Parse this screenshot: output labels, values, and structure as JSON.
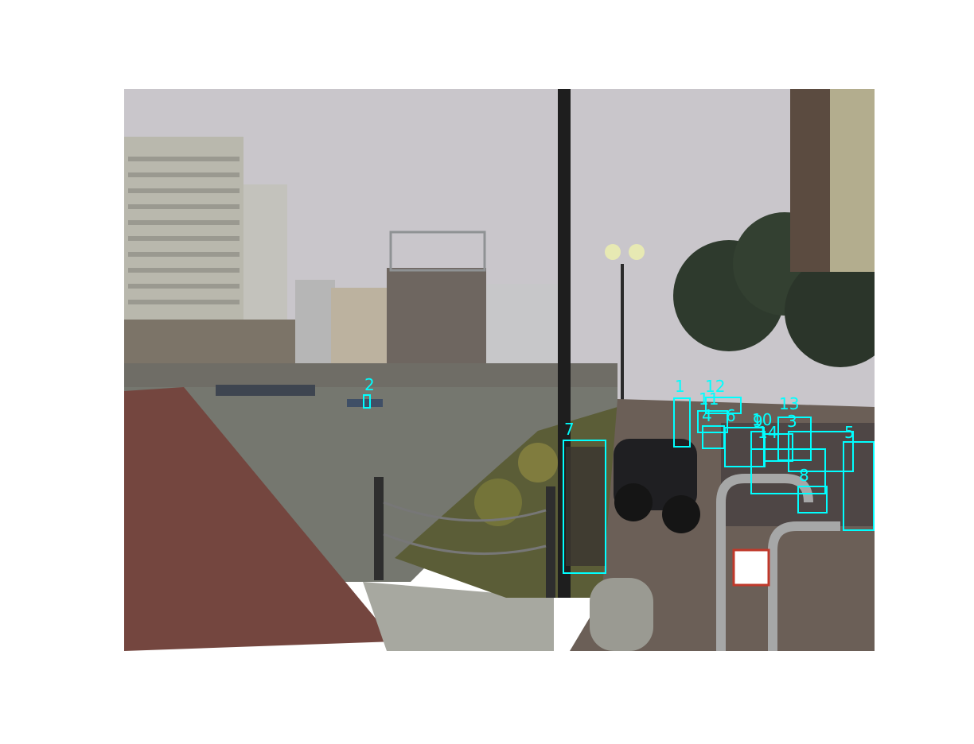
{
  "image": {
    "description_free": true,
    "annotation_color": "#00ffff"
  },
  "detections": [
    {
      "label": "1"
    },
    {
      "label": "2"
    },
    {
      "label": "3"
    },
    {
      "label": "4"
    },
    {
      "label": "5"
    },
    {
      "label": "6"
    },
    {
      "label": "7"
    },
    {
      "label": "8"
    },
    {
      "label": "9"
    },
    {
      "label": "10"
    },
    {
      "label": "11"
    },
    {
      "label": "12"
    },
    {
      "label": "13"
    },
    {
      "label": "14"
    }
  ]
}
